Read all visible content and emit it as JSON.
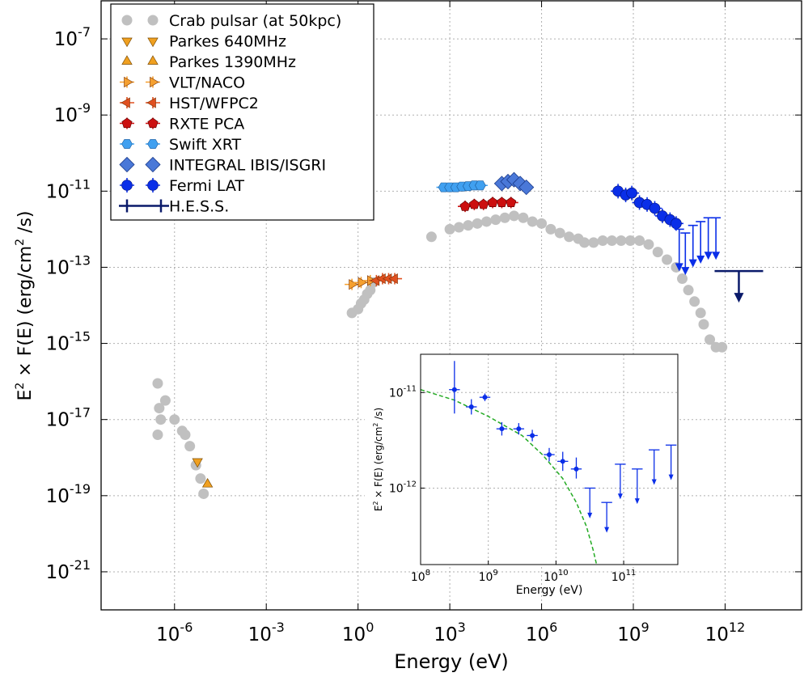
{
  "chart_data": [
    {
      "type": "scatter",
      "xlabel": "Energy (eV)",
      "ylabel_parts": [
        "E",
        "2",
        " × F(E)  (erg/cm",
        "2",
        " /s)"
      ],
      "x_scale": "log",
      "y_scale": "log",
      "xlim_exp": [
        -8.4,
        14.5
      ],
      "ylim_exp": [
        -22.0,
        -6.0
      ],
      "x_ticks": [
        {
          "base": "10",
          "exp": "-6",
          "value": -6
        },
        {
          "base": "10",
          "exp": "-3",
          "value": -3
        },
        {
          "base": "10",
          "exp": "0",
          "value": 0
        },
        {
          "base": "10",
          "exp": "3",
          "value": 3
        },
        {
          "base": "10",
          "exp": "6",
          "value": 6
        },
        {
          "base": "10",
          "exp": "9",
          "value": 9
        },
        {
          "base": "10",
          "exp": "12",
          "value": 12
        }
      ],
      "y_ticks": [
        {
          "base": "10",
          "exp": "-7",
          "value": -7
        },
        {
          "base": "10",
          "exp": "-9",
          "value": -9
        },
        {
          "base": "10",
          "exp": "-11",
          "value": -11
        },
        {
          "base": "10",
          "exp": "-13",
          "value": -13
        },
        {
          "base": "10",
          "exp": "-15",
          "value": -15
        },
        {
          "base": "10",
          "exp": "-17",
          "value": -17
        },
        {
          "base": "10",
          "exp": "-19",
          "value": -19
        },
        {
          "base": "10",
          "exp": "-21",
          "value": -21
        }
      ],
      "grid": true,
      "legend_position": "top-left",
      "series": [
        {
          "name": "Crab pulsar (at 50kpc)",
          "marker": "circle",
          "color": "#c0c0c0",
          "points_log": [
            [
              -6.55,
              -16.05
            ],
            [
              -6.5,
              -16.7
            ],
            [
              -6.45,
              -17.0
            ],
            [
              -6.55,
              -17.4
            ],
            [
              -6.3,
              -16.5
            ],
            [
              -6.0,
              -17.0
            ],
            [
              -5.75,
              -17.3
            ],
            [
              -5.65,
              -17.4
            ],
            [
              -5.5,
              -17.7
            ],
            [
              -5.3,
              -18.2
            ],
            [
              -5.15,
              -18.55
            ],
            [
              -5.05,
              -18.95
            ],
            [
              -0.2,
              -14.2
            ],
            [
              0.0,
              -14.1
            ],
            [
              0.1,
              -13.95
            ],
            [
              0.2,
              -13.85
            ],
            [
              0.3,
              -13.7
            ],
            [
              0.4,
              -13.6
            ],
            [
              0.5,
              -13.4
            ],
            [
              2.4,
              -12.2
            ],
            [
              3.0,
              -12.0
            ],
            [
              3.3,
              -11.95
            ],
            [
              3.6,
              -11.9
            ],
            [
              3.9,
              -11.85
            ],
            [
              4.2,
              -11.8
            ],
            [
              4.5,
              -11.75
            ],
            [
              4.8,
              -11.7
            ],
            [
              5.1,
              -11.65
            ],
            [
              5.4,
              -11.7
            ],
            [
              5.7,
              -11.8
            ],
            [
              6.0,
              -11.85
            ],
            [
              6.3,
              -12.0
            ],
            [
              6.6,
              -12.1
            ],
            [
              6.9,
              -12.2
            ],
            [
              7.2,
              -12.25
            ],
            [
              7.4,
              -12.35
            ],
            [
              7.7,
              -12.35
            ],
            [
              8.0,
              -12.3
            ],
            [
              8.3,
              -12.3
            ],
            [
              8.6,
              -12.3
            ],
            [
              8.9,
              -12.3
            ],
            [
              9.2,
              -12.3
            ],
            [
              9.5,
              -12.4
            ],
            [
              9.8,
              -12.6
            ],
            [
              10.1,
              -12.8
            ],
            [
              10.4,
              -13.0
            ],
            [
              10.6,
              -13.3
            ],
            [
              10.8,
              -13.6
            ],
            [
              11.0,
              -13.9
            ],
            [
              11.2,
              -14.2
            ],
            [
              11.3,
              -14.5
            ],
            [
              11.5,
              -14.9
            ],
            [
              11.7,
              -15.1
            ],
            [
              11.9,
              -15.1
            ]
          ]
        },
        {
          "name": "Parkes 640MHz",
          "marker": "triangle-down",
          "color": "#f0a020",
          "points_log": [
            [
              -5.25,
              -18.1
            ]
          ]
        },
        {
          "name": "Parkes 1390MHz",
          "marker": "triangle-up",
          "color": "#f0a020",
          "points_log": [
            [
              -4.92,
              -18.7
            ]
          ]
        },
        {
          "name": "VLT/NACO",
          "marker": "triangle-right",
          "color": "#f5a030",
          "points_log": [
            [
              -0.2,
              -13.45
            ],
            [
              0.1,
              -13.4
            ],
            [
              0.4,
              -13.35
            ]
          ]
        },
        {
          "name": "HST/WFPC2",
          "marker": "triangle-left",
          "color": "#e05020",
          "points_log": [
            [
              0.6,
              -13.35
            ],
            [
              0.8,
              -13.3
            ],
            [
              1.0,
              -13.3
            ],
            [
              1.2,
              -13.3
            ]
          ]
        },
        {
          "name": "RXTE PCA",
          "marker": "pentagon",
          "color": "#cc1010",
          "points_log": [
            [
              3.5,
              -11.4
            ],
            [
              3.8,
              -11.35
            ],
            [
              4.1,
              -11.35
            ],
            [
              4.4,
              -11.3
            ],
            [
              4.7,
              -11.3
            ],
            [
              5.0,
              -11.3
            ]
          ]
        },
        {
          "name": "Swift XRT",
          "marker": "hexagon",
          "color": "#40a0f0",
          "points_log": [
            [
              2.8,
              -10.9
            ],
            [
              3.0,
              -10.9
            ],
            [
              3.2,
              -10.9
            ],
            [
              3.4,
              -10.88
            ],
            [
              3.6,
              -10.87
            ],
            [
              3.8,
              -10.85
            ],
            [
              4.0,
              -10.85
            ]
          ]
        },
        {
          "name": "INTEGRAL IBIS/ISGRI",
          "marker": "diamond",
          "color": "#4a78d8",
          "points_log": [
            [
              4.7,
              -10.8
            ],
            [
              4.9,
              -10.75
            ],
            [
              5.1,
              -10.7
            ],
            [
              5.3,
              -10.8
            ],
            [
              5.5,
              -10.9
            ]
          ]
        },
        {
          "name": "Fermi LAT",
          "marker": "circle-err",
          "color": "#0a2ee8",
          "points_log": [
            [
              8.5,
              -11.0
            ],
            [
              8.75,
              -11.1
            ],
            [
              8.95,
              -11.05
            ],
            [
              9.2,
              -11.3
            ],
            [
              9.45,
              -11.35
            ],
            [
              9.7,
              -11.45
            ],
            [
              9.95,
              -11.65
            ],
            [
              10.2,
              -11.75
            ],
            [
              10.4,
              -11.85
            ]
          ]
        },
        {
          "name": "Fermi LAT upper limits",
          "marker": "upper-limit",
          "color": "#0a2ee8",
          "legend": false,
          "points_log": [
            [
              10.5,
              -12.0
            ],
            [
              10.7,
              -12.1
            ],
            [
              10.95,
              -11.9
            ],
            [
              11.2,
              -11.8
            ],
            [
              11.45,
              -11.7
            ],
            [
              11.7,
              -11.7
            ]
          ]
        },
        {
          "name": "H.E.S.S.",
          "marker": "hess",
          "color": "#0a1a6a",
          "points_log": [
            [
              12.45,
              -13.1
            ]
          ]
        }
      ]
    },
    {
      "type": "scatter",
      "inset": true,
      "xlabel": "Energy (eV)",
      "ylabel_parts": [
        "E",
        "2",
        " × F(E)  (erg/cm",
        "2",
        " /s)"
      ],
      "x_scale": "log",
      "y_scale": "log",
      "xlim_exp": [
        8.0,
        11.8
      ],
      "ylim_exp": [
        -12.8,
        -10.6
      ],
      "x_ticks": [
        {
          "base": "10",
          "exp": "8",
          "value": 8
        },
        {
          "base": "10",
          "exp": "9",
          "value": 9
        },
        {
          "base": "10",
          "exp": "10",
          "value": 10
        },
        {
          "base": "10",
          "exp": "11",
          "value": 11
        }
      ],
      "y_ticks": [
        {
          "base": "10",
          "exp": "-11",
          "value": -11
        },
        {
          "base": "10",
          "exp": "-12",
          "value": -12
        }
      ],
      "grid": true,
      "model_curve_log": [
        [
          8.0,
          -10.97
        ],
        [
          8.5,
          -11.08
        ],
        [
          9.0,
          -11.25
        ],
        [
          9.5,
          -11.45
        ],
        [
          9.8,
          -11.65
        ],
        [
          10.1,
          -11.9
        ],
        [
          10.3,
          -12.15
        ],
        [
          10.45,
          -12.4
        ],
        [
          10.55,
          -12.65
        ],
        [
          10.6,
          -12.8
        ]
      ],
      "points_log": [
        [
          8.5,
          -10.97,
          0.25,
          0.3,
          0.08
        ],
        [
          8.75,
          -11.15,
          0.08,
          0.08,
          0.08
        ],
        [
          8.95,
          -11.05,
          0.04,
          0.04,
          0.08
        ],
        [
          9.2,
          -11.38,
          0.07,
          0.07,
          0.08
        ],
        [
          9.45,
          -11.38,
          0.06,
          0.06,
          0.08
        ],
        [
          9.65,
          -11.45,
          0.06,
          0.06,
          0.08
        ],
        [
          9.9,
          -11.65,
          0.07,
          0.07,
          0.08
        ],
        [
          10.1,
          -11.72,
          0.1,
          0.1,
          0.08
        ],
        [
          10.3,
          -11.8,
          0.1,
          0.12,
          0.08
        ]
      ],
      "upper_limits_log": [
        [
          10.5,
          -12.0,
          0.3
        ],
        [
          10.75,
          -12.15,
          0.3
        ],
        [
          10.95,
          -11.75,
          0.35
        ],
        [
          11.2,
          -11.8,
          0.35
        ],
        [
          11.45,
          -11.6,
          0.35
        ],
        [
          11.7,
          -11.55,
          0.35
        ]
      ]
    }
  ]
}
